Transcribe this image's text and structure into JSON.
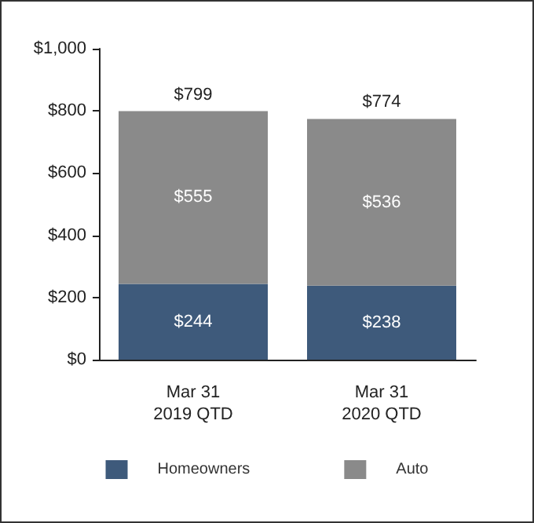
{
  "chart_data": {
    "type": "bar",
    "stacked": true,
    "categories": [
      "Mar 31\n2019 QTD",
      "Mar 31\n2020 QTD"
    ],
    "series": [
      {
        "name": "Homeowners",
        "color": "#3e5a7b",
        "values": [
          244,
          238
        ],
        "value_labels": [
          "$244",
          "$238"
        ]
      },
      {
        "name": "Auto",
        "color": "#8a8a8a",
        "values": [
          555,
          536
        ],
        "value_labels": [
          "$555",
          "$536"
        ]
      }
    ],
    "totals": [
      "$799",
      "$774"
    ],
    "ylim": [
      0,
      1000
    ],
    "yticks": [
      {
        "value": 0,
        "label": "$0"
      },
      {
        "value": 200,
        "label": "$200"
      },
      {
        "value": 400,
        "label": "$400"
      },
      {
        "value": 600,
        "label": "$600"
      },
      {
        "value": 800,
        "label": "$800"
      },
      {
        "value": 1000,
        "label": "$1,000"
      }
    ],
    "grid": false,
    "legend": "bottom"
  }
}
